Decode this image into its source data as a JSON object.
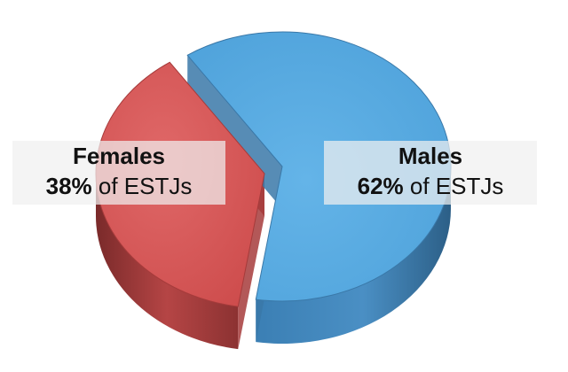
{
  "chart_data": {
    "type": "pie",
    "style": "3d-exploded",
    "slices": [
      {
        "name": "Females",
        "value": 38,
        "pct_text": "38%",
        "suffix": "of ESTJs",
        "color": "#d95a5a",
        "side_color": "#a63b3b"
      },
      {
        "name": "Males",
        "value": 62,
        "pct_text": "62%",
        "suffix": "of ESTJs",
        "color": "#5aaee3",
        "side_color": "#3a78a8"
      }
    ]
  }
}
